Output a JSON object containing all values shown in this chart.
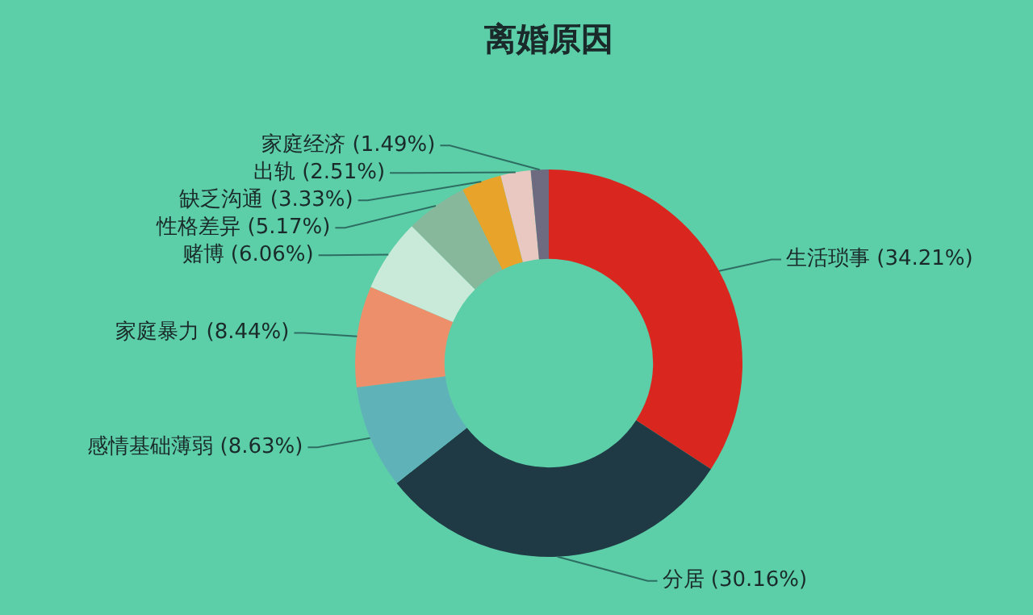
{
  "chart_data": {
    "type": "donut",
    "title": "离婚原因",
    "categories": [
      "生活琐事",
      "分居",
      "感情基础薄弱",
      "家庭暴力",
      "赌博",
      "性格差异",
      "缺乏沟通",
      "出轨",
      "家庭经济"
    ],
    "values": [
      34.21,
      30.16,
      8.63,
      8.44,
      6.06,
      5.17,
      3.33,
      2.51,
      1.49
    ],
    "value_labels": [
      "(34.21%)",
      "(30.16%)",
      "(8.63%)",
      "(8.44%)",
      "(6.06%)",
      "(5.17%)",
      "(3.33%)",
      "(2.51%)",
      "(1.49%)"
    ],
    "colors": [
      "#d9271f",
      "#1f3a44",
      "#5fb3b8",
      "#ee8f6c",
      "#c9ead9",
      "#88b89c",
      "#e8a42a",
      "#e8c8c0",
      "#6e6a80"
    ],
    "legend": false
  }
}
